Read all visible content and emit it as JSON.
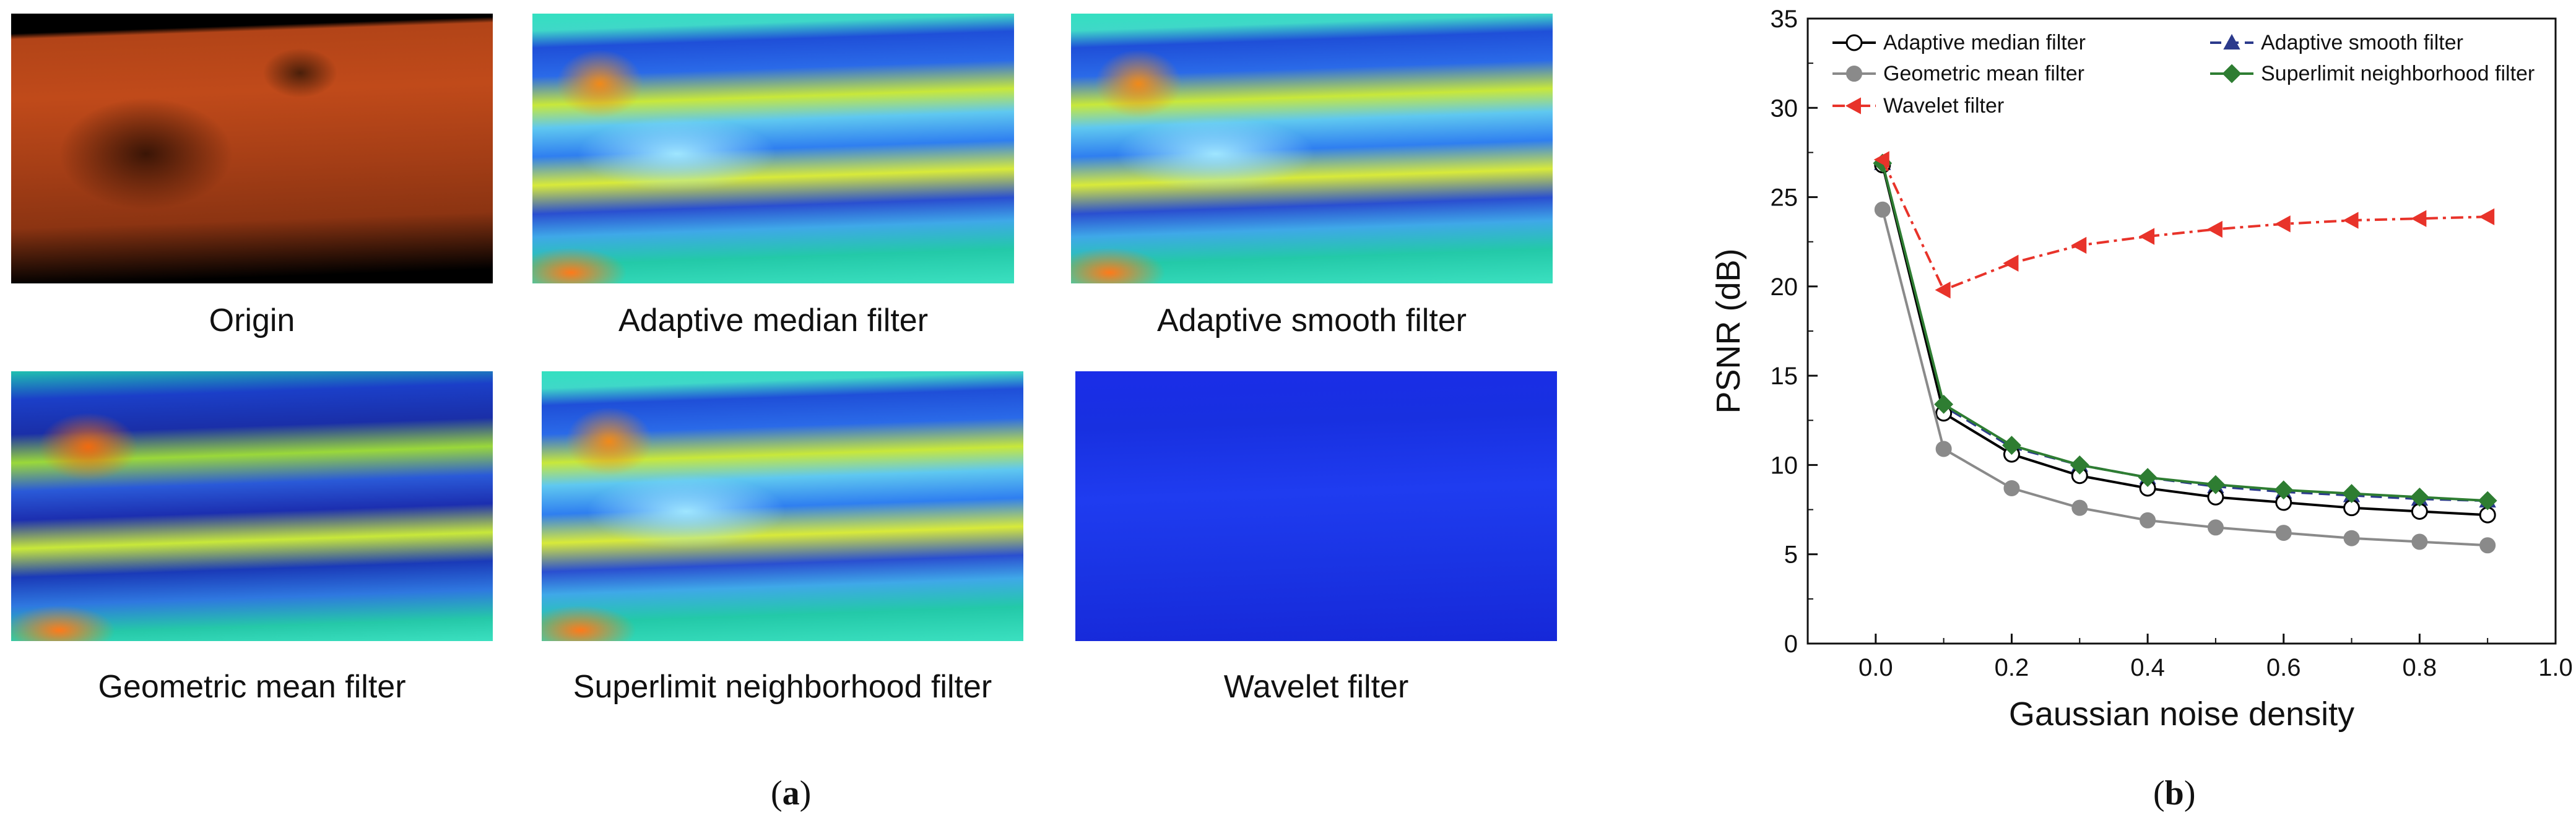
{
  "panel_a": {
    "label": "a",
    "images": [
      {
        "name": "Origin",
        "style": "origin"
      },
      {
        "name": "Adaptive median filter",
        "style": "noisy"
      },
      {
        "name": "Adaptive smooth filter",
        "style": "noisy"
      },
      {
        "name": "Geometric mean filter",
        "style": "dark"
      },
      {
        "name": "Superlimit neighborhood filter",
        "style": "noisy"
      },
      {
        "name": "Wavelet filter",
        "style": "wavelet"
      }
    ]
  },
  "panel_b": {
    "label": "b"
  },
  "chart_data": {
    "type": "line",
    "title": "",
    "xlabel": "Gaussian noise density",
    "ylabel": "PSNR (dB)",
    "xlim": [
      -0.1,
      1.0
    ],
    "ylim": [
      0,
      35
    ],
    "xticks": [
      0.0,
      0.2,
      0.4,
      0.6,
      0.8,
      1.0
    ],
    "xtick_labels": [
      "0.0",
      "0.2",
      "0.4",
      "0.6",
      "0.8",
      "1.0"
    ],
    "yticks": [
      0,
      5,
      10,
      15,
      20,
      25,
      30,
      35
    ],
    "ytick_labels": [
      "0",
      "5",
      "10",
      "15",
      "20",
      "25",
      "30",
      "35"
    ],
    "grid": false,
    "legend": "top",
    "x": [
      0.01,
      0.1,
      0.2,
      0.3,
      0.4,
      0.5,
      0.6,
      0.7,
      0.8,
      0.9
    ],
    "series": [
      {
        "name": "Adaptive median filter",
        "color": "#000000",
        "dash": "solid",
        "marker": "circle-open",
        "values": [
          26.8,
          12.9,
          10.6,
          9.4,
          8.7,
          8.2,
          7.9,
          7.6,
          7.4,
          7.2
        ]
      },
      {
        "name": "Adaptive smooth filter",
        "color": "#2b3a8c",
        "dash": "dash",
        "marker": "triangle",
        "values": [
          26.9,
          13.3,
          11.0,
          10.0,
          9.3,
          8.8,
          8.5,
          8.3,
          8.1,
          8.0
        ]
      },
      {
        "name": "Geometric mean filter",
        "color": "#8a8a8a",
        "dash": "solid",
        "marker": "circle",
        "values": [
          24.3,
          10.9,
          8.7,
          7.6,
          6.9,
          6.5,
          6.2,
          5.9,
          5.7,
          5.5
        ]
      },
      {
        "name": "Superlimit neighborhood filter",
        "color": "#2e7d32",
        "dash": "solid",
        "marker": "diamond",
        "values": [
          26.9,
          13.4,
          11.1,
          10.0,
          9.3,
          8.9,
          8.6,
          8.4,
          8.2,
          8.0
        ]
      },
      {
        "name": "Wavelet filter",
        "color": "#e8332a",
        "dash": "dashdot",
        "marker": "triangle-left",
        "values": [
          27.1,
          19.8,
          21.3,
          22.3,
          22.8,
          23.2,
          23.5,
          23.7,
          23.8,
          23.9
        ]
      }
    ]
  }
}
